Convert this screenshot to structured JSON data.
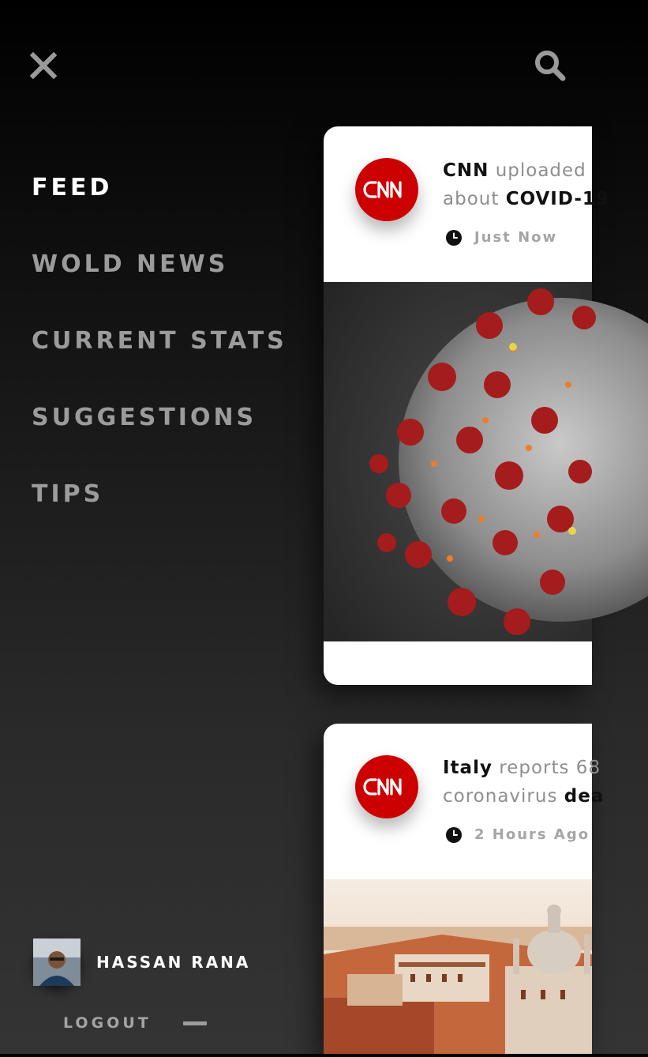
{
  "menu": {
    "items": [
      {
        "label": "FEED",
        "active": true
      },
      {
        "label": "WOLD NEWS",
        "active": false
      },
      {
        "label": "CURRENT STATS",
        "active": false
      },
      {
        "label": "SUGGESTIONS",
        "active": false
      },
      {
        "label": "TIPS",
        "active": false
      }
    ]
  },
  "user": {
    "name": "HASSAN RANA",
    "logout_label": "LOGOUT"
  },
  "icons": {
    "close": "close-icon",
    "search": "search-icon",
    "clock": "clock-icon",
    "source_logo": "cnn-logo"
  },
  "feed": [
    {
      "source": "CNN",
      "verb": "uploaded",
      "about_word": "about",
      "topic": "COVID-19",
      "time": "Just Now"
    },
    {
      "source": "Italy",
      "verb": "reports 68",
      "about_word": "coronavirus",
      "topic": "dea",
      "time": "2 Hours Ago"
    }
  ],
  "colors": {
    "brand_red": "#cc0000",
    "menu_active": "#ffffff",
    "menu_inactive": "#9b9b9b",
    "card_bg": "#ffffff"
  }
}
